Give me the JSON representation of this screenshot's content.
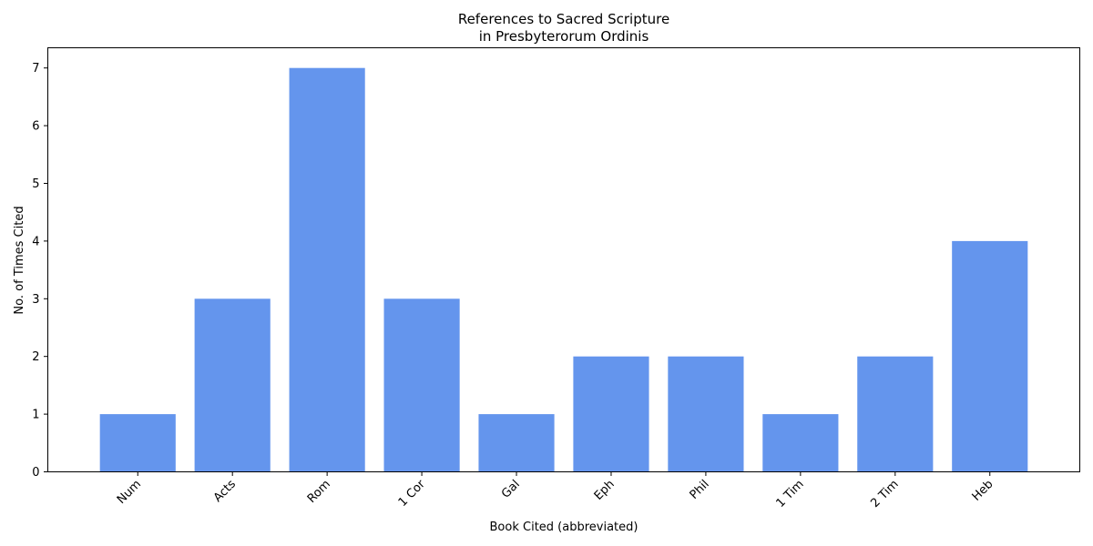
{
  "chart_data": {
    "type": "bar",
    "title": "References to Sacred Scripture\nin Presbyterorum Ordinis",
    "title_lines": [
      "References to Sacred Scripture",
      "in Presbyterorum Ordinis"
    ],
    "xlabel": "Book Cited (abbreviated)",
    "ylabel": "No. of Times Cited",
    "categories": [
      "Num",
      "Acts",
      "Rom",
      "1 Cor",
      "Gal",
      "Eph",
      "Phil",
      "1 Tim",
      "2 Tim",
      "Heb"
    ],
    "values": [
      1,
      3,
      7,
      3,
      1,
      2,
      2,
      1,
      2,
      4
    ],
    "ylim": [
      0,
      7.35
    ],
    "yticks": [
      0,
      1,
      2,
      3,
      4,
      5,
      6,
      7
    ],
    "grid": false,
    "bar_color": "#6495ED"
  }
}
